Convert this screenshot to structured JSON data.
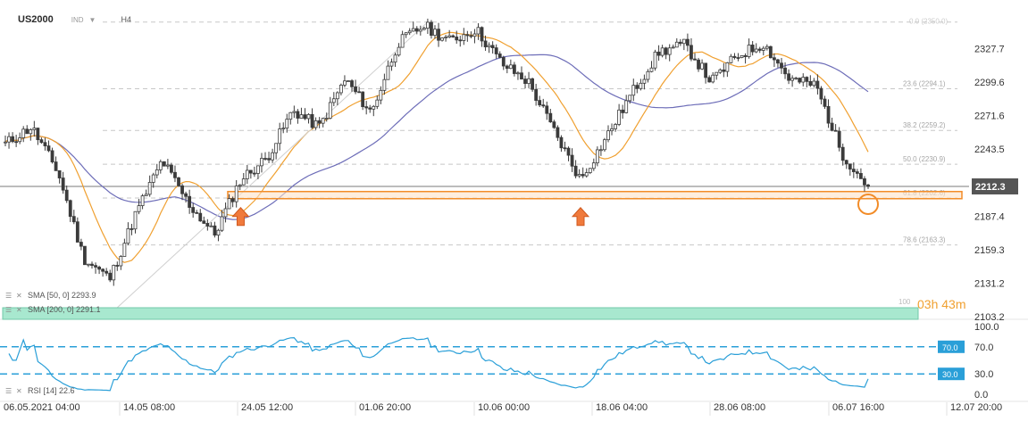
{
  "header": {
    "symbol": "US2000",
    "exchange": "IND",
    "timeframe": "H4"
  },
  "colors": {
    "candle": "#3b3b3b",
    "sma50": "#f0a030",
    "sma200": "#6d6db8",
    "support": "#f28c28",
    "arrow": "#f07a3c",
    "rsi": "#2a9fd8",
    "rsi_levels": "#2a9fd8",
    "countdown_band": "#a8e8cf",
    "price_label_bg": "#555555"
  },
  "price_axis": {
    "ticks": [
      "2327.7",
      "2299.6",
      "2271.6",
      "2243.5",
      "2187.4",
      "2159.3",
      "2131.2",
      "2103.2"
    ],
    "current_price": "2212.3"
  },
  "time_axis": {
    "labels": [
      "06.05.2021 04:00",
      "14.05 08:00",
      "24.05 12:00",
      "01.06 20:00",
      "10.06 00:00",
      "18.06 04:00",
      "28.06 08:00",
      "06.07 16:00",
      "12.07 20:00"
    ]
  },
  "fib_labels": [
    "23.6 (2294.1)",
    "38.2 (2259.2)",
    "50.0 (2230.9)",
    "61.8 (2202.6)",
    "78.6 (2163.3)"
  ],
  "fib_top_label": "0.0 (2350.0)",
  "indicators": {
    "sma50": "SMA [50, 0] 2293.9",
    "sma200": "SMA [200, 0] 2291.1",
    "rsi": "RSI [14] 22.6"
  },
  "countdown": {
    "value": "03h 43m",
    "prefix": "100"
  },
  "rsi_axis": {
    "ticks": [
      "100.0",
      "70.0",
      "30.0",
      "0.0"
    ],
    "level_70": "70.0",
    "level_30": "30.0"
  },
  "chart_data": {
    "type": "candlestick",
    "instrument": "US2000",
    "timeframe": "H4",
    "x_range": [
      "06.05.2021 04:00",
      "12.07 20:00"
    ],
    "ylim": [
      2103.2,
      2355
    ],
    "support_zone": [
      2202,
      2208
    ],
    "current_price": 2212.3,
    "price_path": [
      {
        "x": "06.05.2021 04:00",
        "close": 2248
      },
      {
        "x": "08.05",
        "close": 2262
      },
      {
        "x": "10.05",
        "close": 2225
      },
      {
        "x": "12.05",
        "close": 2152
      },
      {
        "x": "13.05",
        "close": 2135
      },
      {
        "x": "14.05 08:00",
        "close": 2190
      },
      {
        "x": "18.05",
        "close": 2234
      },
      {
        "x": "20.05",
        "close": 2198
      },
      {
        "x": "21.05",
        "close": 2172
      },
      {
        "x": "24.05 12:00",
        "close": 2218
      },
      {
        "x": "26.05",
        "close": 2236
      },
      {
        "x": "28.05",
        "close": 2276
      },
      {
        "x": "01.06 20:00",
        "close": 2262
      },
      {
        "x": "03.06",
        "close": 2302
      },
      {
        "x": "04.06",
        "close": 2274
      },
      {
        "x": "07.06",
        "close": 2332
      },
      {
        "x": "08.06",
        "close": 2347
      },
      {
        "x": "10.06 00:00",
        "close": 2334
      },
      {
        "x": "11.06",
        "close": 2344
      },
      {
        "x": "14.06",
        "close": 2315
      },
      {
        "x": "16.06",
        "close": 2300
      },
      {
        "x": "17.06",
        "close": 2258
      },
      {
        "x": "18.06 04:00",
        "close": 2218
      },
      {
        "x": "21.06",
        "close": 2254
      },
      {
        "x": "23.06",
        "close": 2292
      },
      {
        "x": "25.06",
        "close": 2325
      },
      {
        "x": "28.06 08:00",
        "close": 2331
      },
      {
        "x": "29.06",
        "close": 2300
      },
      {
        "x": "01.07",
        "close": 2322
      },
      {
        "x": "02.07",
        "close": 2332
      },
      {
        "x": "05.07",
        "close": 2302
      },
      {
        "x": "06.07",
        "close": 2297
      },
      {
        "x": "06.07 16:00",
        "close": 2240
      },
      {
        "x": "07.07",
        "close": 2212
      }
    ],
    "series": [
      {
        "name": "SMA [50, 0]",
        "last": 2293.9
      },
      {
        "name": "SMA [200, 0]",
        "last": 2291.1
      },
      {
        "name": "RSI [14]",
        "last": 22.6,
        "levels": [
          70,
          30
        ],
        "range": [
          0,
          100
        ]
      }
    ],
    "fibonacci": [
      {
        "level": 0.0,
        "price": 2350.0
      },
      {
        "level": 23.6,
        "price": 2294.1
      },
      {
        "level": 38.2,
        "price": 2259.2
      },
      {
        "level": 50.0,
        "price": 2230.9
      },
      {
        "level": 61.8,
        "price": 2202.6
      },
      {
        "level": 78.6,
        "price": 2163.3
      }
    ],
    "annotations": [
      "support-arrow-24.05",
      "support-arrow-18.06",
      "circle-last-candle"
    ]
  }
}
